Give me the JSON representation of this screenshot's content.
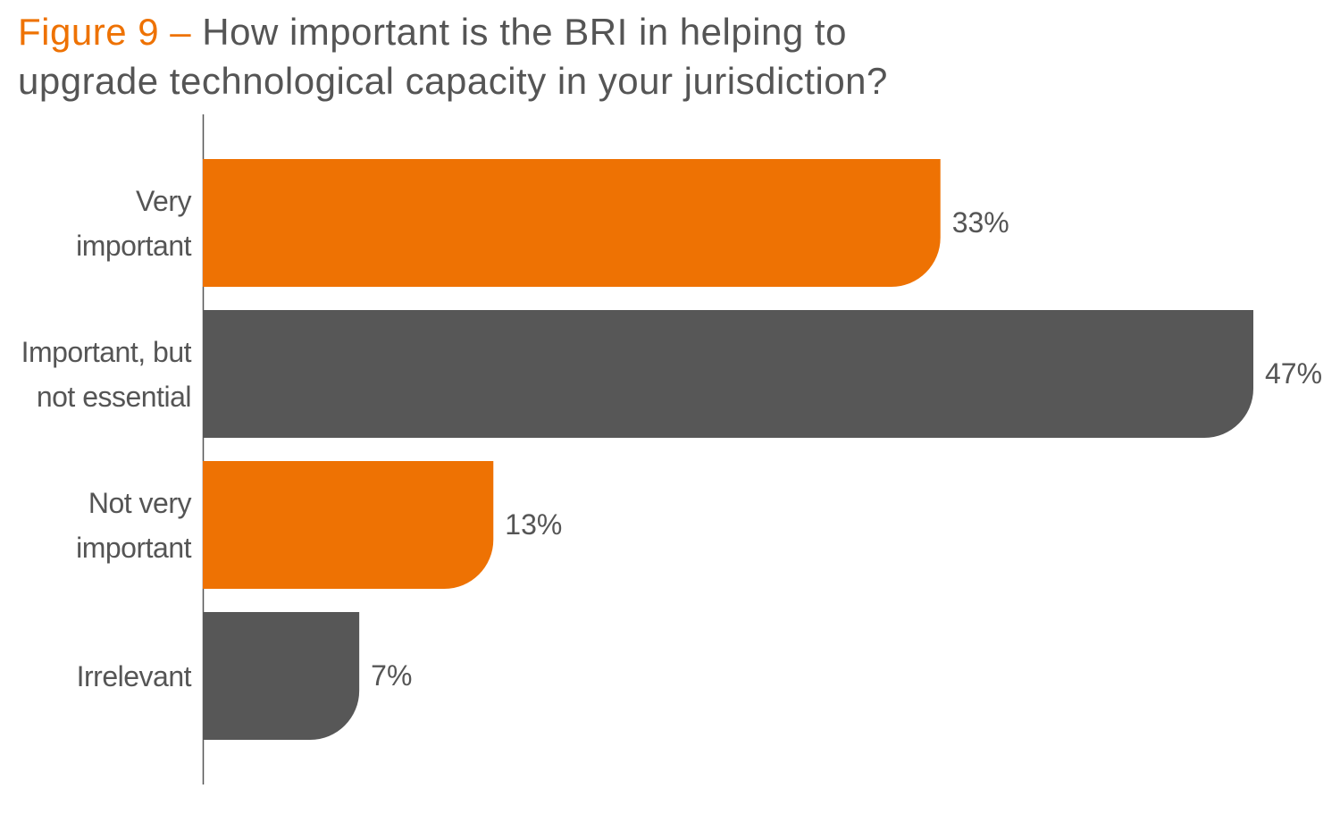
{
  "chart_data": {
    "type": "hbar",
    "figure_label": "Figure 9 –",
    "title": "How important is the BRI in helping to\nupgrade technological capacity in your jurisdiction?",
    "categories": [
      "Very\nimportant",
      "Important, but\nnot essential",
      "Not very\nimportant",
      "Irrelevant"
    ],
    "values": [
      33,
      47,
      13,
      7
    ],
    "value_labels": [
      "33%",
      "47%",
      "13%",
      "7%"
    ],
    "colors": [
      "#ee7203",
      "#575757",
      "#ee7203",
      "#575757"
    ]
  }
}
